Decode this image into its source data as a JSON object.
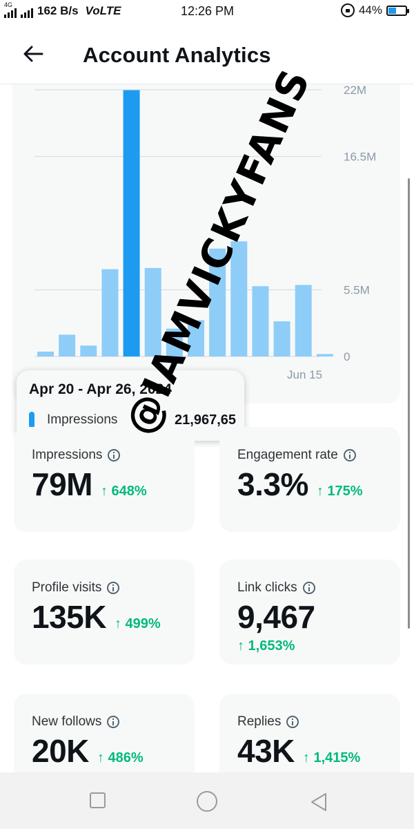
{
  "status_bar": {
    "network_tag": "4G",
    "speed": "162 B/s",
    "volte": "VoLTE",
    "time": "12:26 PM",
    "battery": "44%"
  },
  "header": {
    "title": "Account Analytics"
  },
  "chart_data": {
    "type": "bar",
    "series": [
      {
        "name": "Impressions",
        "color": "#8ecdf7",
        "highlight_color": "#1d9bf0",
        "values": [
          0.4,
          1.8,
          0.9,
          7.2,
          21.97,
          7.3,
          2.3,
          3.0,
          8.9,
          9.5,
          5.8,
          2.9,
          5.9,
          0.2
        ]
      }
    ],
    "highlighted_index": 4,
    "y_ticks": [
      "0",
      "5.5M",
      "16.5M",
      "22M"
    ],
    "y_tick_values": [
      0,
      5.5,
      16.5,
      22
    ],
    "ylim": [
      0,
      22
    ],
    "x_tick_labels": [
      "Jun 15"
    ],
    "grid": true
  },
  "tooltip": {
    "date_range": "Apr 20 - Apr 26, 2024",
    "label": "Impressions",
    "value": "21,967,65"
  },
  "metrics": [
    {
      "label": "Impressions",
      "value": "79M",
      "change": "↑ 648%"
    },
    {
      "label": "Engagement rate",
      "value": "3.3%",
      "change": "↑ 175%"
    },
    {
      "label": "Profile visits",
      "value": "135K",
      "change": "↑ 499%"
    },
    {
      "label": "Link clicks",
      "value": "9,467",
      "change": "↑ 1,653%"
    },
    {
      "label": "New follows",
      "value": "20K",
      "change": "↑ 486%"
    },
    {
      "label": "Replies",
      "value": "43K",
      "change": "↑ 1,415%"
    }
  ],
  "watermark": "@IAMVICKYFANS",
  "icons": {
    "back": "arrow-left-icon",
    "info": "info-icon",
    "battery": "battery-icon",
    "rotation_lock": "rotation-lock-icon"
  }
}
